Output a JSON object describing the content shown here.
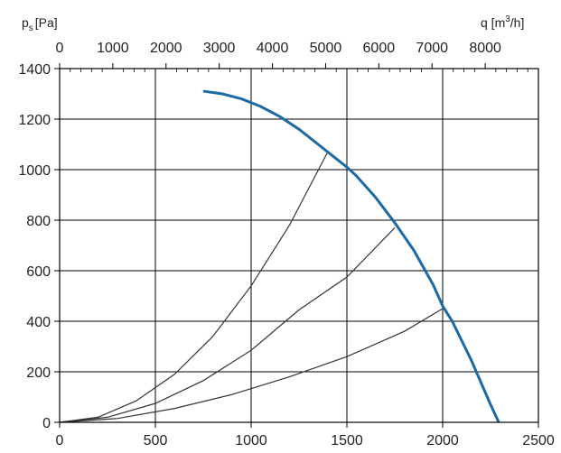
{
  "chart_data": {
    "type": "line",
    "y_label": "p",
    "y_label_sub": "s",
    "y_label_unit": "[Pa]",
    "top_label": "q [m",
    "top_label_sup": "3",
    "top_label_end": "/h]",
    "x_range": [
      0,
      2500
    ],
    "x_ticks": [
      0,
      500,
      1000,
      1500,
      2000,
      2500
    ],
    "x_tick_labels": [
      "0",
      "500",
      "1000",
      "1500",
      "2000",
      "2500"
    ],
    "y_range": [
      0,
      1400
    ],
    "y_ticks": [
      0,
      200,
      400,
      600,
      800,
      1000,
      1200,
      1400
    ],
    "y_tick_labels": [
      "0",
      "200",
      "400",
      "600",
      "800",
      "1000",
      "1200",
      "1400"
    ],
    "top_axis_range": [
      0,
      9000
    ],
    "top_ticks": [
      0,
      1000,
      2000,
      3000,
      4000,
      5000,
      6000,
      7000,
      8000
    ],
    "top_tick_labels": [
      "0",
      "1000",
      "2000",
      "3000",
      "4000",
      "5000",
      "6000",
      "7000",
      "8000"
    ],
    "grid": true,
    "fan_curve": {
      "color": "#1b6aa5",
      "x": [
        755,
        850,
        950,
        1050,
        1150,
        1250,
        1350,
        1450,
        1500,
        1550,
        1650,
        1750,
        1850,
        1950,
        2000,
        2050,
        2150,
        2250,
        2290
      ],
      "y": [
        1310,
        1300,
        1280,
        1250,
        1210,
        1160,
        1100,
        1040,
        1010,
        975,
        890,
        790,
        680,
        545,
        460,
        400,
        245,
        70,
        5
      ]
    },
    "system_curves": [
      {
        "x": [
          0,
          200,
          400,
          600,
          800,
          1000,
          1200,
          1400
        ],
        "y": [
          0,
          20,
          85,
          190,
          340,
          540,
          780,
          1070
        ]
      },
      {
        "x": [
          0,
          250,
          500,
          750,
          1000,
          1250,
          1500,
          1750
        ],
        "y": [
          0,
          20,
          75,
          165,
          285,
          445,
          575,
          770
        ]
      },
      {
        "x": [
          0,
          300,
          600,
          900,
          1200,
          1500,
          1800,
          2000
        ],
        "y": [
          0,
          15,
          55,
          110,
          180,
          260,
          360,
          450
        ]
      }
    ]
  }
}
